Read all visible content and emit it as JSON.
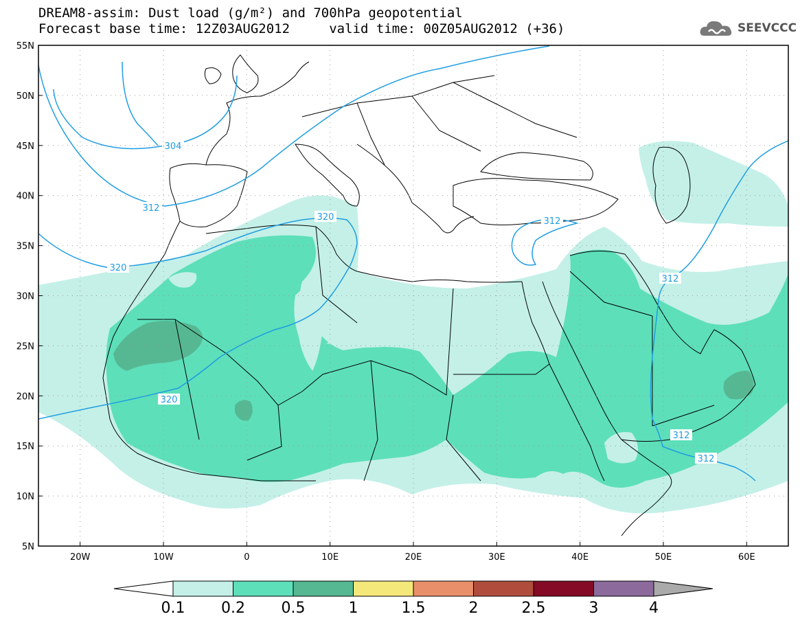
{
  "title": {
    "line1": "DREAM8-assim: Dust load (g/m²) and 700hPa geopotential",
    "line2": "Forecast base time: 12Z03AUG2012     valid time: 00Z05AUG2012 (+36)"
  },
  "logo": {
    "text": "SEEVCCC",
    "icon": "cloud-logo-icon"
  },
  "map": {
    "lon_range": [
      -25,
      65
    ],
    "lat_range": [
      5,
      55
    ],
    "lon_ticks": [
      {
        "v": -20,
        "label": "20W"
      },
      {
        "v": -10,
        "label": "10W"
      },
      {
        "v": 0,
        "label": "0"
      },
      {
        "v": 10,
        "label": "10E"
      },
      {
        "v": 20,
        "label": "20E"
      },
      {
        "v": 30,
        "label": "30E"
      },
      {
        "v": 40,
        "label": "40E"
      },
      {
        "v": 50,
        "label": "50E"
      },
      {
        "v": 60,
        "label": "60E"
      }
    ],
    "lat_ticks": [
      {
        "v": 55,
        "label": "55N"
      },
      {
        "v": 50,
        "label": "50N"
      },
      {
        "v": 45,
        "label": "45N"
      },
      {
        "v": 40,
        "label": "40N"
      },
      {
        "v": 35,
        "label": "35N"
      },
      {
        "v": 30,
        "label": "30N"
      },
      {
        "v": 25,
        "label": "25N"
      },
      {
        "v": 20,
        "label": "20N"
      },
      {
        "v": 15,
        "label": "15N"
      },
      {
        "v": 10,
        "label": "10N"
      },
      {
        "v": 5,
        "label": "5N"
      }
    ],
    "contour_labels": [
      "304",
      "312",
      "320",
      "320",
      "320",
      "312",
      "312",
      "312",
      "312"
    ],
    "colors": {
      "level1": "#c4f0e8",
      "level2": "#5ddfba",
      "level3": "#56b892",
      "contour": "#1f9de2",
      "coast": "#000000"
    }
  },
  "colorbar": {
    "labels": [
      "0.1",
      "0.2",
      "0.5",
      "1",
      "1.5",
      "2",
      "2.5",
      "3",
      "4"
    ],
    "colors": [
      "#c4f0e8",
      "#5ddfba",
      "#56b892",
      "#f5e87a",
      "#e9906a",
      "#b04c3c",
      "#840a26",
      "#8c6a9c"
    ],
    "under_color": "#ffffff",
    "over_color": "#aaaaaa"
  }
}
